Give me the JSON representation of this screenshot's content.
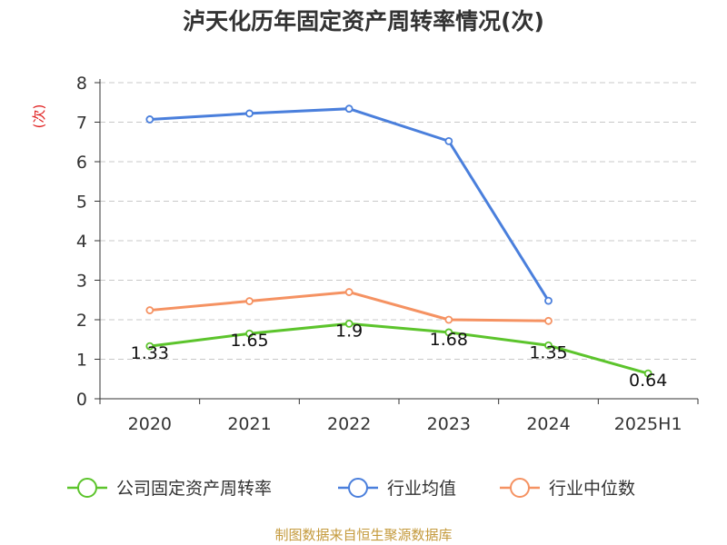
{
  "title": "泸天化历年固定资产周转率情况(次)",
  "source": "制图数据来自恒生聚源数据库",
  "chart_data": {
    "type": "line",
    "title": "泸天化历年固定资产周转率情况(次)",
    "ylabel": "(次)",
    "ylim": [
      0,
      8
    ],
    "yticks": [
      0,
      1,
      2,
      3,
      4,
      5,
      6,
      7,
      8
    ],
    "categories": [
      "2020",
      "2021",
      "2022",
      "2023",
      "2024",
      "2025H1"
    ],
    "grid": true,
    "legend_position": "bottom",
    "series": [
      {
        "name": "公司固定资产周转率",
        "color": "#5cc42c",
        "values": [
          1.33,
          1.65,
          1.9,
          1.68,
          1.35,
          0.64
        ],
        "labels": [
          "1.33",
          "1.65",
          "1.9",
          "1.68",
          "1.35",
          "0.64"
        ]
      },
      {
        "name": "行业均值",
        "color": "#4a7fdc",
        "values": [
          7.07,
          7.22,
          7.34,
          6.52,
          2.48,
          null
        ]
      },
      {
        "name": "行业中位数",
        "color": "#f59262",
        "values": [
          2.24,
          2.47,
          2.7,
          2.0,
          1.97,
          null
        ]
      }
    ]
  }
}
